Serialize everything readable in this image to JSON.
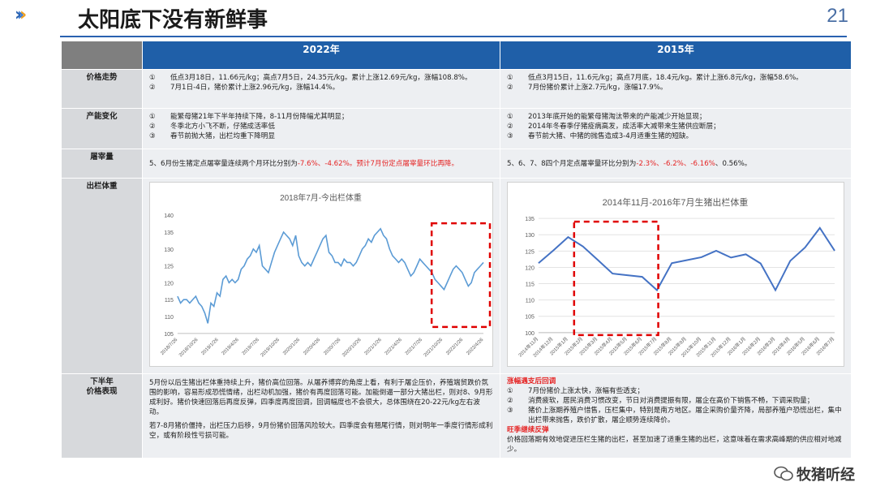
{
  "header": {
    "title": "太阳底下没有新鲜事",
    "page_number": "21"
  },
  "columns": [
    "2022年",
    "2015年"
  ],
  "rows": {
    "price_trend": {
      "label": "价格走势",
      "left": [
        {
          "n": "①",
          "t": "低点3月18日，11.66元/kg；高点7月5日，24.35元/kg。累计上涨12.69元/kg，涨幅108.8%。"
        },
        {
          "n": "②",
          "t": "7月1日-4日，猪价累计上涨2.96元/kg，涨幅14.4%。"
        }
      ],
      "right": [
        {
          "n": "①",
          "t": "低点3月15日，11.6元/kg；高点7月底，18.4元/kg。累计上涨6.8元/kg，涨幅58.6%。"
        },
        {
          "n": "②",
          "t": "7月份猪价累计上涨2.7元/kg，涨幅17.9%。"
        }
      ]
    },
    "capacity": {
      "label": "产能变化",
      "left": [
        {
          "n": "①",
          "t": "能繁母猪21年下半年持续下降，8-11月份降幅尤其明显；"
        },
        {
          "n": "②",
          "t": "冬季北方小飞不断，仔猪成活率低"
        },
        {
          "n": "③",
          "t": "春节前抛大猪，出栏均重下降明显"
        }
      ],
      "right": [
        {
          "n": "①",
          "t": "2013年底开始的能繁母猪淘汰带来的产能减少开始显现；"
        },
        {
          "n": "②",
          "t": "2014年冬春季仔猪疫病高发，成活率大减带来生猪供应断层；"
        },
        {
          "n": "③",
          "t": "春节前大猪、中猪的抛售造成3-4月适重生猪的短缺。"
        }
      ]
    },
    "slaughter": {
      "label": "屠宰量",
      "left_a": "5、6月份生猪定点屠宰量连续两个月环比分别为",
      "left_b": "-7.6%、-4.62%。预计7月份定点屠宰量环比再降。",
      "right_a": "5、6、7、8四个月定点屠宰量环比分别为",
      "right_b": "-2.3%、-6.2%、-6.16%",
      "right_c": "、0.56%。"
    },
    "weight": {
      "label": "出栏体重"
    },
    "outlook": {
      "label_1": "下半年",
      "label_2": "价格表现",
      "left_p1": "5月份以后生猪出栏体重持续上升，猪价高位回落。从屠养博弈的角度上看，有利于屠企压价，养殖端贸跌价氛围的影响，容易形成恐慌情绪，出栏动机加强，猪价有再度回落可能。加能倒逼一部分大猪出栏，则对8、9月形成利好。猪价快速回落后再度反弹，四季度再度回调，回调幅度也不会很大，总体围绕在20-22元/kg左右波动。",
      "left_p2": "若7-8月猪价僵持，出栏压力后移，9月份猪价回落风险较大。四季度会有翘尾行情，则对明年一季度行情形成利空，或有阶段性亏损可能。",
      "right_h1": "涨幅遇支后回调",
      "right_items": [
        {
          "n": "①",
          "t": "7月份猪价上涨太快，涨幅有些透支；"
        },
        {
          "n": "②",
          "t": "消费疲软，居民消费习惯改变，节日对消费提振有限，屠企在高价下销售不畅，下调采购量；"
        },
        {
          "n": "③",
          "t": "猪价上涨期养殖户惜售，压栏集中，特别是南方地区。屠企采购价量齐降，局部养殖户恐慌出栏，集中出栏带来抛售，跌价扩散，屠企顺势连续降价。"
        }
      ],
      "right_h2": "旺季继续反弹",
      "right_p2": "价格回落期有效地促进压栏生猪的出栏，甚至加速了适重生猪的出栏，这意味着在需求高峰期的供应相对地减少。"
    }
  },
  "watermark": "牧猪听经",
  "chart_data": [
    {
      "type": "line",
      "title": "2018年7月-今出栏体重",
      "x_ticks": [
        "2018/7/26",
        "2018/10/26",
        "2019/1/26",
        "2019/4/26",
        "2019/7/26",
        "2019/10/26",
        "2020/1/26",
        "2020/4/26",
        "2020/7/26",
        "2020/10/26",
        "2021/1/26",
        "2021/4/26",
        "2021/7/26",
        "2021/10/26",
        "2022/1/26",
        "2022/4/26"
      ],
      "ylim": [
        105,
        140
      ],
      "y_ticks": [
        105,
        110,
        115,
        120,
        125,
        130,
        135,
        140
      ],
      "color": "#5b9bd5",
      "highlight": "2022",
      "values": [
        116,
        114,
        115,
        115,
        114,
        115,
        116,
        114,
        113,
        111,
        108,
        114,
        113,
        117,
        116,
        121,
        122,
        120,
        121,
        120,
        121,
        124,
        125,
        127,
        128,
        130,
        129,
        131,
        125,
        124,
        123,
        126,
        129,
        131,
        133,
        135,
        134,
        133,
        131,
        134,
        128,
        126,
        125,
        126,
        125,
        127,
        129,
        131,
        133,
        134,
        129,
        128,
        126,
        126,
        125,
        127,
        126,
        126,
        125,
        126,
        128,
        130,
        131,
        133,
        132,
        134,
        135,
        136,
        134,
        133,
        130,
        128,
        127,
        126,
        127,
        126,
        124,
        122,
        123,
        125,
        127,
        126,
        125,
        124,
        123,
        121,
        120,
        119,
        118,
        120,
        122,
        124,
        125,
        124,
        123,
        121,
        119,
        120,
        123,
        124,
        125,
        126
      ]
    },
    {
      "type": "line",
      "title": "2014年11月-2016年7月生猪出栏体重",
      "x": [
        "2014年11月",
        "2014年12月",
        "2015年1月",
        "2015年2月",
        "2015年3月",
        "2015年4月",
        "2015年5月",
        "2015年6月",
        "2015年7月",
        "2015年8月",
        "2015年9月",
        "2015年10月",
        "2015年11月",
        "2015年12月",
        "2016年1月",
        "2016年2月",
        "2016年3月",
        "2016年4月",
        "2016年5月",
        "2016年6月",
        "2016年7月"
      ],
      "ylim": [
        100,
        135
      ],
      "y_ticks": [
        100,
        105,
        110,
        115,
        120,
        125,
        130,
        135
      ],
      "color": "#4472c4",
      "values": [
        121.3,
        125.2,
        129.3,
        126.4,
        122.3,
        118.1,
        117.6,
        117.1,
        113.0,
        121.3,
        122.2,
        123.1,
        125.1,
        123.0,
        124.0,
        121.2,
        113.0,
        122.0,
        126.1,
        132.1,
        125.1
      ]
    }
  ]
}
